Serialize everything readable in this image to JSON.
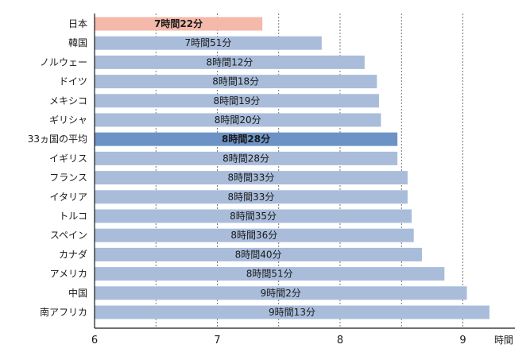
{
  "chart_data": {
    "type": "bar",
    "orientation": "horizontal",
    "x_unit_label": "時間",
    "xlim": [
      6,
      9.33
    ],
    "x_ticks": [
      6,
      7,
      8,
      9
    ],
    "x_tick_labels": [
      "6",
      "7",
      "8",
      "9"
    ],
    "grid": "vertical dashed gridlines at 6.5, 7, 7.5, 8, 8.5, 9",
    "categories": [
      "日本",
      "韓国",
      "ノルウェー",
      "ドイツ",
      "メキシコ",
      "ギリシャ",
      "33ヵ国の平均",
      "イギリス",
      "フランス",
      "イタリア",
      "トルコ",
      "スペイン",
      "カナダ",
      "アメリカ",
      "中国",
      "南アフリカ"
    ],
    "values": [
      7.367,
      7.85,
      8.2,
      8.3,
      8.317,
      8.333,
      8.467,
      8.467,
      8.55,
      8.55,
      8.583,
      8.6,
      8.667,
      8.85,
      9.033,
      9.217
    ],
    "value_labels": [
      "7時間22分",
      "7時間51分",
      "8時間12分",
      "8時間18分",
      "8時間19分",
      "8時間20分",
      "8時間28分",
      "8時間28分",
      "8時間33分",
      "8時間33分",
      "8時間35分",
      "8時間36分",
      "8時間40分",
      "8時間51分",
      "9時間2分",
      "9時間13分"
    ],
    "highlight": {
      "index": 0,
      "color": "#f4b9aa"
    },
    "average": {
      "index": 6,
      "color": "#6d93c6"
    },
    "bar_color": "#a9bddb"
  }
}
